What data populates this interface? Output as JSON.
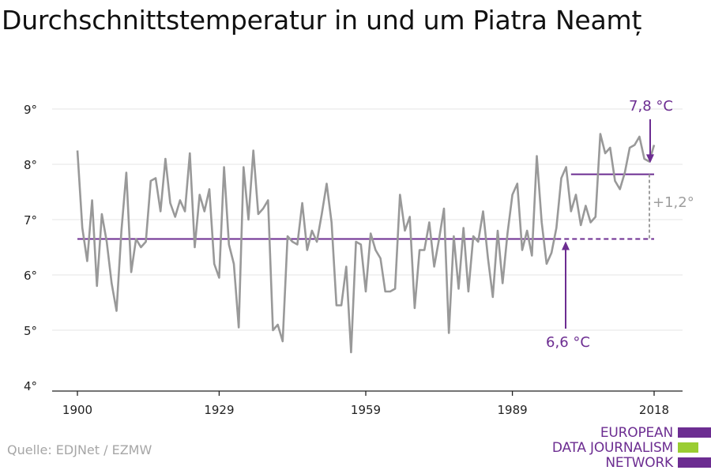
{
  "title": "Durchschnittstemperatur in und um Piatra Neamț",
  "source": "Quelle: EDJNet / EZMW",
  "logo": {
    "lines": [
      "EUROPEAN",
      "DATA JOURNALISM",
      "NETWORK"
    ],
    "colors": [
      "#6c2d91",
      "#9acd32",
      "#6c2d91"
    ]
  },
  "colors": {
    "series": "#999999",
    "accent": "#6c2d91",
    "delta": "#9e9e9e",
    "axis": "#222222",
    "grid": "#e6e6e6"
  },
  "chart_data": {
    "type": "line",
    "title": "Durchschnittstemperatur in und um Piatra Neamț",
    "xlabel": "",
    "ylabel": "",
    "xlim": [
      1900,
      2018
    ],
    "ylim": [
      4,
      9
    ],
    "x_ticks": [
      1900,
      1929,
      1959,
      1989,
      2018
    ],
    "y_ticks": [
      4,
      5,
      6,
      7,
      8,
      9
    ],
    "y_tick_labels": [
      "4°",
      "5°",
      "6°",
      "7°",
      "8°",
      "9°"
    ],
    "grid": true,
    "x_start": 1900,
    "series": [
      {
        "values": [
          8.25,
          6.85,
          6.25,
          7.35,
          5.8,
          7.1,
          6.6,
          5.85,
          5.35,
          6.8,
          7.85,
          6.05,
          6.65,
          6.5,
          6.6,
          7.7,
          7.75,
          7.15,
          8.1,
          7.3,
          7.05,
          7.35,
          7.15,
          8.2,
          6.5,
          7.45,
          7.15,
          7.55,
          6.2,
          5.95,
          7.95,
          6.55,
          6.2,
          5.05,
          7.95,
          7.0,
          8.25,
          7.1,
          7.2,
          7.35,
          5.0,
          5.1,
          4.8,
          6.7,
          6.6,
          6.55,
          7.3,
          6.45,
          6.8,
          6.6,
          7.1,
          7.65,
          6.95,
          5.45,
          5.45,
          6.15,
          4.6,
          6.6,
          6.55,
          5.7,
          6.75,
          6.45,
          6.3,
          5.7,
          5.7,
          5.75,
          7.45,
          6.8,
          7.05,
          5.4,
          6.45,
          6.45,
          6.95,
          6.15,
          6.65,
          7.2,
          4.95,
          6.7,
          5.75,
          6.85,
          5.7,
          6.7,
          6.6,
          7.15,
          6.3,
          5.6,
          6.8,
          5.85,
          6.75,
          7.45,
          7.65,
          6.45,
          6.8,
          6.35,
          8.15,
          6.95,
          6.2,
          6.4,
          6.85,
          7.75,
          7.95,
          7.15,
          7.45,
          6.9,
          7.25,
          6.95,
          7.05,
          8.55,
          8.2,
          8.3,
          7.7,
          7.55,
          7.85,
          8.3,
          8.35,
          8.5,
          8.1,
          8.05,
          8.35
        ]
      }
    ],
    "reference_lines": [
      {
        "label": "6,6 °C",
        "value": 6.65,
        "x_from": 1900,
        "x_solid_to": 1998,
        "x_to": 2018
      },
      {
        "label": "7,8 °C",
        "value": 7.82,
        "x_from": 2001,
        "x_to": 2018
      }
    ],
    "difference_label": "+1,2°"
  }
}
